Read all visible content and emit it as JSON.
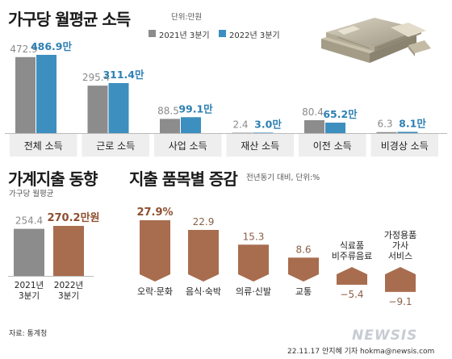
{
  "colors": {
    "y2021": "#8c8c8c",
    "y2022": "#3d8fbf",
    "brown": "#a86d4e",
    "value2022": "#2e7fb3",
    "bg_panel": "#eeeeee"
  },
  "top": {
    "title": "가구당 월평균 소득",
    "unit": "단위:만원",
    "legend": [
      "2021년 3분기",
      "2022년 3분기"
    ]
  },
  "left": {
    "title": "가계지출 동향",
    "subtitle": "가구당 월평균"
  },
  "right": {
    "title": "지출 품목별 증감",
    "unit": "전년동기 대비, 단위:%"
  },
  "footer": {
    "source": "자료: 통계청",
    "credit": "22.11.17 안지혜 기자 hokma@newsis.com",
    "watermark": "NEWSIS"
  },
  "chart_data": [
    {
      "type": "bar",
      "title": "가구당 월평균 소득",
      "unit": "단위:만원",
      "categories": [
        "전체 소득",
        "근로 소득",
        "사업 소득",
        "재산 소득",
        "이전 소득",
        "비경상 소득"
      ],
      "series": [
        {
          "name": "2021년 3분기",
          "values": [
            472.9,
            295.4,
            88.5,
            2.4,
            80.4,
            6.3
          ],
          "labels": [
            "472.9",
            "295.4",
            "88.5",
            "2.4",
            "80.4",
            "6.3"
          ]
        },
        {
          "name": "2022년 3분기",
          "values": [
            486.9,
            311.4,
            99.1,
            3.0,
            65.2,
            8.1
          ],
          "labels": [
            "486.9만",
            "311.4만",
            "99.1만",
            "3.0만",
            "65.2만",
            "8.1만"
          ]
        }
      ],
      "legend": "top"
    },
    {
      "type": "bar",
      "title": "가계지출 동향",
      "subtitle": "가구당 월평균",
      "categories": [
        "2021년 3분기",
        "2022년 3분기"
      ],
      "category_lines": [
        [
          "2021년",
          "3분기"
        ],
        [
          "2022년",
          "3분기"
        ]
      ],
      "values": [
        254.4,
        270.2
      ],
      "labels": [
        "254.4",
        "270.2만원"
      ]
    },
    {
      "type": "bar",
      "title": "지출 품목별 증감",
      "unit": "전년동기 대비, 단위:%",
      "categories": [
        "오락·문화",
        "음식·숙박",
        "의류·신발",
        "교통",
        "식료품 비주류음료",
        "가정용품 가사 서비스"
      ],
      "category_lines": [
        [
          "오락·문화"
        ],
        [
          "음식·숙박"
        ],
        [
          "의류·신발"
        ],
        [
          "교통"
        ],
        [
          "식료품",
          "비주류음료"
        ],
        [
          "가정용품",
          "가사",
          "서비스"
        ]
      ],
      "values": [
        27.9,
        22.9,
        15.3,
        8.6,
        -5.4,
        -9.1
      ],
      "labels": [
        "27.9%",
        "22.9",
        "15.3",
        "8.6",
        "−5.4",
        "−9.1"
      ]
    }
  ]
}
